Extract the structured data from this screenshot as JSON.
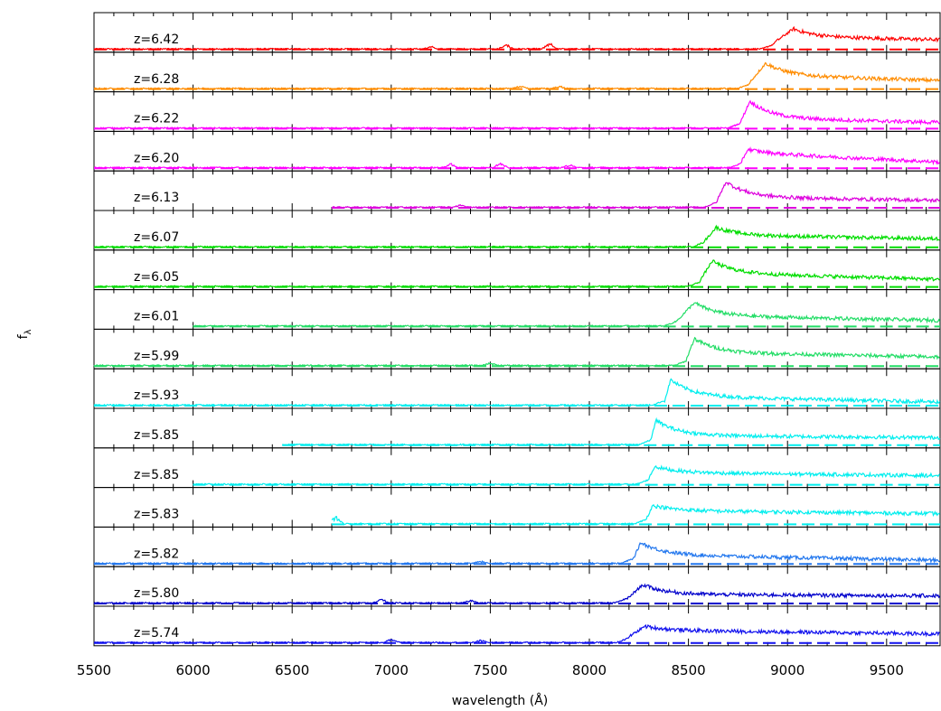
{
  "chart_data": {
    "type": "line",
    "title": "",
    "xlabel": "wavelength (Å)",
    "ylabel": "f_λ",
    "xlim": [
      5500,
      9770
    ],
    "x_ticks": [
      5500,
      6000,
      6500,
      7000,
      7500,
      8000,
      8500,
      9000,
      9500
    ],
    "x_tick_labels": [
      "5500",
      "6000",
      "6500",
      "7000",
      "7500",
      "8000",
      "8500",
      "9000",
      "9500"
    ],
    "grid": false,
    "legend": "none",
    "series": [
      {
        "label": "z=6.42",
        "z": 6.42,
        "color": "#ff0000",
        "start": 5500,
        "edge": 8930,
        "peak_x": 9030,
        "peak": 0.68,
        "plateau": 0.42,
        "red_end": 0.32,
        "pre_bumps": [
          [
            7200,
            0.08
          ],
          [
            7580,
            0.15
          ],
          [
            7800,
            0.2
          ]
        ]
      },
      {
        "label": "z=6.28",
        "z": 6.28,
        "color": "#ff8c00",
        "start": 5500,
        "edge": 8810,
        "peak_x": 8890,
        "peak": 0.85,
        "plateau": 0.45,
        "red_end": 0.28,
        "pre_bumps": [
          [
            7650,
            0.1
          ],
          [
            7850,
            0.08
          ]
        ]
      },
      {
        "label": "z=6.22",
        "z": 6.22,
        "color": "#ff00ff",
        "start": 5500,
        "edge": 8760,
        "peak_x": 8810,
        "peak": 0.9,
        "plateau": 0.35,
        "red_end": 0.2,
        "pre_bumps": []
      },
      {
        "label": "z=6.20",
        "z": 6.2,
        "color": "#ff00ff",
        "start": 5500,
        "edge": 8770,
        "peak_x": 8800,
        "peak": 0.62,
        "plateau": 0.5,
        "red_end": 0.2,
        "pre_bumps": [
          [
            7300,
            0.15
          ],
          [
            7550,
            0.17
          ],
          [
            7900,
            0.1
          ]
        ]
      },
      {
        "label": "z=6.13",
        "z": 6.13,
        "color": "#dd00dd",
        "start": 6700,
        "edge": 8640,
        "peak_x": 8690,
        "peak": 0.85,
        "plateau": 0.35,
        "red_end": 0.24,
        "pre_bumps": [
          [
            7350,
            0.08
          ]
        ]
      },
      {
        "label": "z=6.07",
        "z": 6.07,
        "color": "#00dd00",
        "start": 5500,
        "edge": 8580,
        "peak_x": 8640,
        "peak": 0.65,
        "plateau": 0.4,
        "red_end": 0.28,
        "pre_bumps": []
      },
      {
        "label": "z=6.05",
        "z": 6.05,
        "color": "#00dd00",
        "start": 5500,
        "edge": 8560,
        "peak_x": 8620,
        "peak": 0.85,
        "plateau": 0.45,
        "red_end": 0.25,
        "pre_bumps": []
      },
      {
        "label": "z=6.01",
        "z": 6.01,
        "color": "#22dd66",
        "start": 6000,
        "edge": 8440,
        "peak_x": 8530,
        "peak": 0.78,
        "plateau": 0.35,
        "red_end": 0.2,
        "pre_bumps": []
      },
      {
        "label": "z=5.99",
        "z": 5.99,
        "color": "#22dd66",
        "start": 5500,
        "edge": 8490,
        "peak_x": 8530,
        "peak": 0.9,
        "plateau": 0.45,
        "red_end": 0.3,
        "pre_bumps": [
          [
            7500,
            0.1
          ]
        ]
      },
      {
        "label": "z=5.93",
        "z": 5.93,
        "color": "#00eeee",
        "start": 5500,
        "edge": 8380,
        "peak_x": 8410,
        "peak": 0.85,
        "plateau": 0.3,
        "red_end": 0.12,
        "pre_bumps": []
      },
      {
        "label": "z=5.85",
        "z": 5.85,
        "color": "#00eeee",
        "start": 6450,
        "edge": 8310,
        "peak_x": 8335,
        "peak": 0.82,
        "plateau": 0.32,
        "red_end": 0.25,
        "pre_bumps": []
      },
      {
        "label": "z=5.85",
        "z": 5.85,
        "color": "#00eeee",
        "start": 6000,
        "edge": 8300,
        "peak_x": 8330,
        "peak": 0.6,
        "plateau": 0.4,
        "red_end": 0.3,
        "pre_bumps": []
      },
      {
        "label": "z=5.83",
        "z": 5.83,
        "color": "#00eeee",
        "start": 6700,
        "edge": 8290,
        "peak_x": 8320,
        "peak": 0.62,
        "plateau": 0.45,
        "red_end": 0.35,
        "pre_bumps": [
          [
            6720,
            0.25
          ]
        ]
      },
      {
        "label": "z=5.82",
        "z": 5.82,
        "color": "#2277ee",
        "start": 5500,
        "edge": 8220,
        "peak_x": 8260,
        "peak": 0.7,
        "plateau": 0.3,
        "red_end": 0.12,
        "pre_bumps": [
          [
            7450,
            0.08
          ]
        ]
      },
      {
        "label": "z=5.80",
        "z": 5.8,
        "color": "#0000cc",
        "start": 5500,
        "edge": 8190,
        "peak_x": 8270,
        "peak": 0.62,
        "plateau": 0.3,
        "red_end": 0.25,
        "pre_bumps": [
          [
            6950,
            0.15
          ],
          [
            7400,
            0.1
          ]
        ]
      },
      {
        "label": "z=5.74",
        "z": 5.74,
        "color": "#1111ee",
        "start": 5500,
        "edge": 8200,
        "peak_x": 8280,
        "peak": 0.55,
        "plateau": 0.42,
        "red_end": 0.3,
        "pre_bumps": [
          [
            7000,
            0.12
          ],
          [
            7450,
            0.08
          ]
        ]
      }
    ]
  }
}
